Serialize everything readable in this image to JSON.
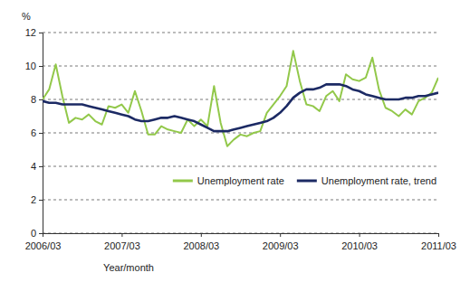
{
  "chart_data": {
    "type": "line",
    "ylabel": "%",
    "xlabel": "Year/month",
    "categories": [
      "2006/03",
      null,
      null,
      null,
      null,
      null,
      null,
      null,
      null,
      null,
      null,
      null,
      "2007/03",
      null,
      null,
      null,
      null,
      null,
      null,
      null,
      null,
      null,
      null,
      null,
      "2008/03",
      null,
      null,
      null,
      null,
      null,
      null,
      null,
      null,
      null,
      null,
      null,
      "2009/03",
      null,
      null,
      null,
      null,
      null,
      null,
      null,
      null,
      null,
      null,
      null,
      "2010/03",
      null,
      null,
      null,
      null,
      null,
      null,
      null,
      null,
      null,
      null,
      null,
      "2011/03"
    ],
    "series": [
      {
        "name": "Unemployment rate",
        "color": "#92c84a",
        "values": [
          8.0,
          8.6,
          10.1,
          8.2,
          6.6,
          6.9,
          6.8,
          7.1,
          6.7,
          6.5,
          7.6,
          7.5,
          7.7,
          7.2,
          8.5,
          7.3,
          5.9,
          5.9,
          6.4,
          6.2,
          6.1,
          6.0,
          6.8,
          6.4,
          6.8,
          6.4,
          8.8,
          6.6,
          5.2,
          5.6,
          5.9,
          5.8,
          6.0,
          6.1,
          7.2,
          7.7,
          8.2,
          8.8,
          10.9,
          9.1,
          7.7,
          7.6,
          7.3,
          8.2,
          8.5,
          7.9,
          9.5,
          9.2,
          9.1,
          9.3,
          10.5,
          8.6,
          7.5,
          7.3,
          7.0,
          7.4,
          7.1,
          7.9,
          8.1,
          8.4,
          9.3
        ]
      },
      {
        "name": "Unemployment rate, trend",
        "color": "#1c2a64",
        "values": [
          7.9,
          7.8,
          7.8,
          7.7,
          7.7,
          7.7,
          7.7,
          7.6,
          7.5,
          7.4,
          7.3,
          7.2,
          7.1,
          7.0,
          6.8,
          6.7,
          6.7,
          6.8,
          6.9,
          6.9,
          7.0,
          6.9,
          6.8,
          6.7,
          6.5,
          6.3,
          6.1,
          6.1,
          6.1,
          6.2,
          6.3,
          6.4,
          6.5,
          6.6,
          6.7,
          6.9,
          7.2,
          7.6,
          8.1,
          8.4,
          8.6,
          8.6,
          8.7,
          8.9,
          8.9,
          8.9,
          8.8,
          8.6,
          8.5,
          8.3,
          8.2,
          8.1,
          8.0,
          8.0,
          8.0,
          8.1,
          8.1,
          8.2,
          8.2,
          8.3,
          8.4
        ]
      }
    ],
    "ylim": [
      0,
      12
    ],
    "yticks": [
      0,
      2,
      4,
      6,
      8,
      10,
      12
    ],
    "grid": true,
    "legend": "lower right"
  }
}
